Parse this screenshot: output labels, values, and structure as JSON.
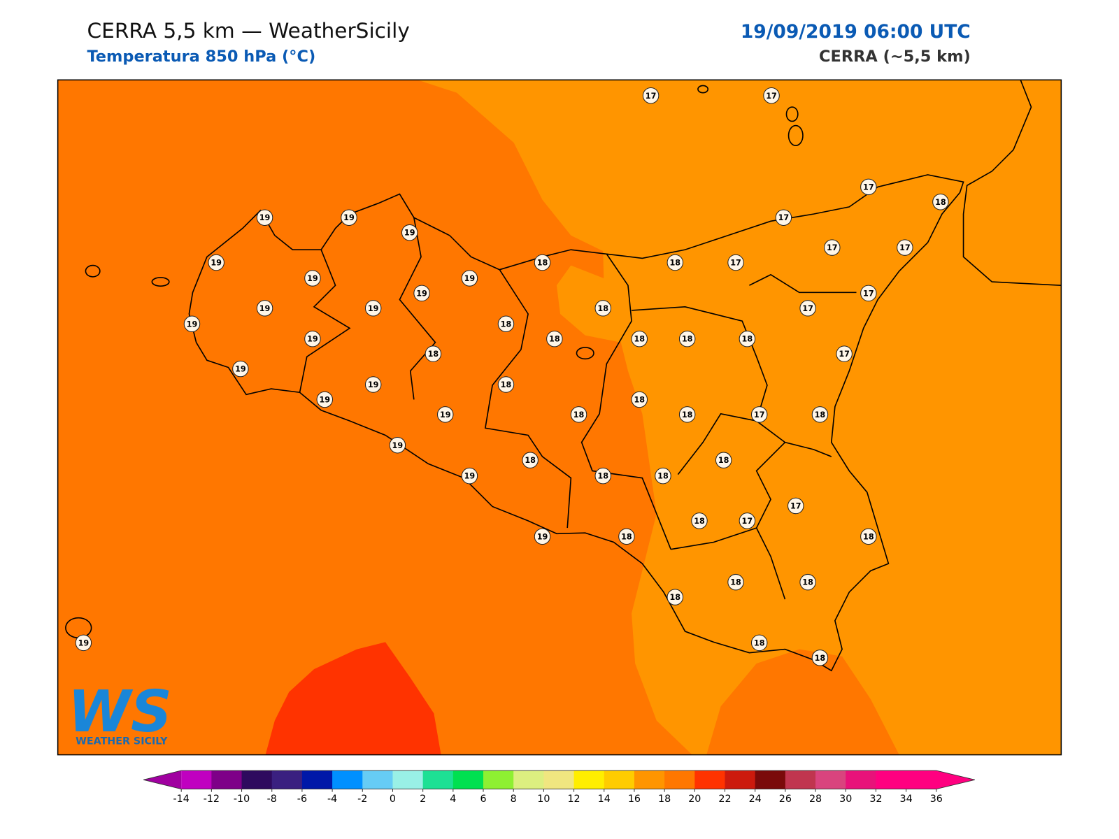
{
  "header": {
    "title": "CERRA 5,5 km — WeatherSicily",
    "subtitle": "Temperatura 850 hPa (°C)",
    "date": "19/09/2019 06:00 UTC",
    "model": "CERRA (~5,5 km)"
  },
  "stations": [
    17,
    17,
    17,
    18,
    19,
    19,
    19,
    17,
    17,
    17,
    19,
    18,
    18,
    17,
    19,
    19,
    19,
    17,
    19,
    19,
    18,
    17,
    19,
    18,
    19,
    18,
    18,
    18,
    18,
    17,
    18,
    19,
    19,
    18,
    19,
    18,
    19,
    18,
    18,
    17,
    18,
    19,
    18,
    18,
    19,
    18,
    18,
    17,
    18,
    17,
    19,
    18,
    18,
    18,
    18,
    18,
    18,
    18,
    19
  ],
  "colorbar": {
    "ticks": [
      -14,
      -12,
      -10,
      -8,
      -6,
      -4,
      -2,
      0,
      2,
      4,
      6,
      8,
      10,
      12,
      14,
      16,
      18,
      20,
      22,
      24,
      26,
      28,
      30,
      32,
      34,
      36
    ],
    "colors": [
      "#c000c0",
      "#7e0088",
      "#2e0a5e",
      "#3a2080",
      "#0018a8",
      "#0090ff",
      "#66ccf5",
      "#99f0e6",
      "#1de094",
      "#00e050",
      "#8ef032",
      "#dcef80",
      "#f0e680",
      "#ffee00",
      "#ffcc00",
      "#ff9500",
      "#ff7700",
      "#ff3300",
      "#cc1a0d",
      "#7a0a0a",
      "#c0354f",
      "#d9447e",
      "#e8127a",
      "#ff0080",
      "#ff0080"
    ],
    "under": "#a000a0",
    "over": "#ff0080"
  },
  "logo": {
    "mark": "WS",
    "name": "WEATHER SICILY"
  }
}
